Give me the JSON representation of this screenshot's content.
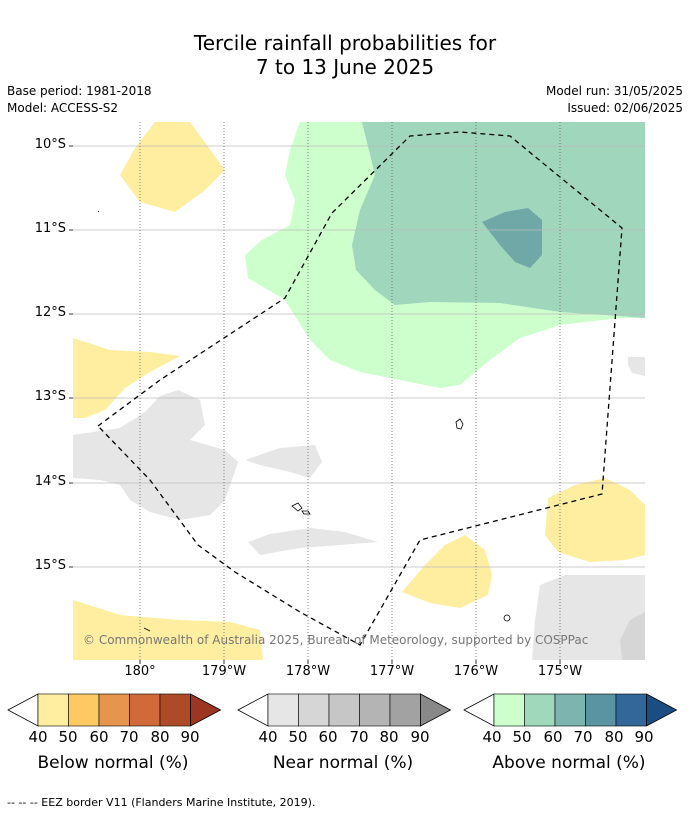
{
  "title": {
    "line1": "Tercile rainfall probabilities for",
    "line2": "7 to 13 June 2025"
  },
  "meta": {
    "base_period": "Base period: 1981-2018",
    "model": "Model: ACCESS-S2",
    "model_run": "Model run: 31/05/2025",
    "issued": "Issued: 02/06/2025"
  },
  "map": {
    "lat_ticks": [
      "10°S",
      "11°S",
      "12°S",
      "13°S",
      "14°S",
      "15°S"
    ],
    "lon_ticks": [
      "180°",
      "179°W",
      "178°W",
      "177°W",
      "176°W",
      "175°W"
    ],
    "copyright": "© Commonwealth of Australia 2025, Bureau of Meteorology, supported by COSPPac",
    "border_style": "dashed",
    "colors": {
      "below_40": "#ffeda0",
      "near_40": "#e6e6e6",
      "above_40": "#ccffcc",
      "above_50": "#9fd6bc",
      "above_60": "#70a8a8",
      "gridline": "#bbbbbb"
    }
  },
  "colorbars": [
    {
      "label": "Below normal (%)",
      "ticks": [
        "40",
        "50",
        "60",
        "70",
        "80",
        "90"
      ],
      "colors": [
        "#ffeda0",
        "#fdc962",
        "#e5954d",
        "#d2693a",
        "#ad4a28",
        "#9c3623"
      ]
    },
    {
      "label": "Near normal (%)",
      "ticks": [
        "40",
        "50",
        "60",
        "70",
        "80",
        "90"
      ],
      "colors": [
        "#e6e6e6",
        "#d6d6d6",
        "#c6c6c6",
        "#b4b4b4",
        "#a2a2a2",
        "#888888"
      ]
    },
    {
      "label": "Above normal (%)",
      "ticks": [
        "40",
        "50",
        "60",
        "70",
        "80",
        "90"
      ],
      "colors": [
        "#ccffcc",
        "#a0d8bc",
        "#7db4b0",
        "#5a93a2",
        "#336699",
        "#1a4e82"
      ]
    }
  ],
  "footer": "--  --  -- EEZ border V11 (Flanders Marine Institute, 2019)."
}
